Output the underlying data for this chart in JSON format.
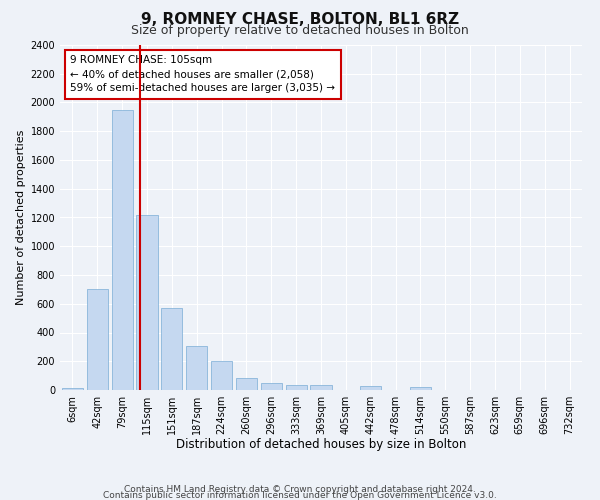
{
  "title1": "9, ROMNEY CHASE, BOLTON, BL1 6RZ",
  "title2": "Size of property relative to detached houses in Bolton",
  "xlabel": "Distribution of detached houses by size in Bolton",
  "ylabel": "Number of detached properties",
  "categories": [
    "6sqm",
    "42sqm",
    "79sqm",
    "115sqm",
    "151sqm",
    "187sqm",
    "224sqm",
    "260sqm",
    "296sqm",
    "333sqm",
    "369sqm",
    "405sqm",
    "442sqm",
    "478sqm",
    "514sqm",
    "550sqm",
    "587sqm",
    "623sqm",
    "659sqm",
    "696sqm",
    "732sqm"
  ],
  "values": [
    15,
    700,
    1950,
    1220,
    570,
    305,
    200,
    85,
    48,
    38,
    38,
    0,
    30,
    0,
    20,
    0,
    0,
    0,
    0,
    0,
    0
  ],
  "bar_color": "#c5d8f0",
  "bar_edge_color": "#7aacd6",
  "vline_color": "#cc0000",
  "annotation_line1": "9 ROMNEY CHASE: 105sqm",
  "annotation_line2": "← 40% of detached houses are smaller (2,058)",
  "annotation_line3": "59% of semi-detached houses are larger (3,035) →",
  "annotation_box_color": "#ffffff",
  "annotation_box_edge": "#cc0000",
  "ylim": [
    0,
    2400
  ],
  "yticks": [
    0,
    200,
    400,
    600,
    800,
    1000,
    1200,
    1400,
    1600,
    1800,
    2000,
    2200,
    2400
  ],
  "footnote1": "Contains HM Land Registry data © Crown copyright and database right 2024.",
  "footnote2": "Contains public sector information licensed under the Open Government Licence v3.0.",
  "background_color": "#eef2f8",
  "title1_fontsize": 11,
  "title2_fontsize": 9,
  "xlabel_fontsize": 8.5,
  "ylabel_fontsize": 8,
  "tick_fontsize": 7,
  "annotation_fontsize": 7.5,
  "footnote_fontsize": 6.5
}
